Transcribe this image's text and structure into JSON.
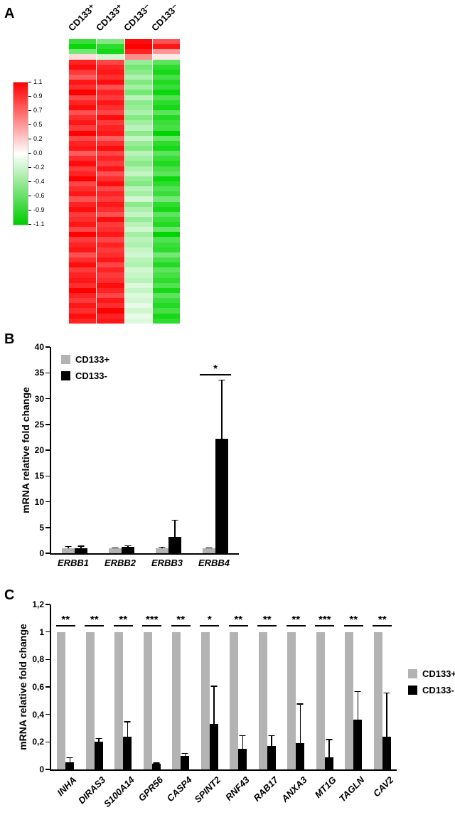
{
  "panels": {
    "a": "A",
    "b": "B",
    "c": "C"
  },
  "panel_a": {
    "column_labels": [
      "CD133⁺",
      "CD133⁺",
      "CD133⁻",
      "CD133⁻"
    ],
    "colorbar_ticks": [
      "1.1",
      "0.9",
      "0.7",
      "0.5",
      "0.2",
      "0.0",
      "-0.2",
      "-0.4",
      "-0.6",
      "-0.9",
      "-1.1"
    ]
  },
  "chart_data": [
    {
      "type": "heatmap",
      "panel": "A",
      "columns": [
        "CD133+",
        "CD133+",
        "CD133-",
        "CD133-"
      ],
      "colorscale": {
        "min": -1.1,
        "max": 1.1,
        "min_color": "#00cc00",
        "mid_color": "#ffffff",
        "max_color": "#ff0000"
      },
      "rows": [
        [
          -0.85,
          -0.55,
          1.05,
          0.75
        ],
        [
          -1.05,
          -0.9,
          1.1,
          1.0
        ],
        [
          -0.6,
          -1.0,
          0.95,
          0.45
        ],
        [
          0.15,
          -0.2,
          0.5,
          0.1
        ],
        [
          0.95,
          0.8,
          -0.45,
          -0.7
        ],
        [
          1.05,
          0.95,
          -0.6,
          -0.9
        ],
        [
          0.85,
          1.0,
          -0.5,
          -1.0
        ],
        [
          0.7,
          0.9,
          -0.35,
          -0.8
        ],
        [
          1.0,
          1.05,
          -0.55,
          -0.95
        ],
        [
          0.9,
          0.75,
          -0.4,
          -0.85
        ],
        [
          1.1,
          0.95,
          -0.6,
          -1.05
        ],
        [
          0.8,
          0.85,
          -0.3,
          -0.75
        ],
        [
          0.95,
          1.0,
          -0.5,
          -0.9
        ],
        [
          1.05,
          0.9,
          -0.45,
          -1.0
        ],
        [
          0.75,
          0.8,
          -0.35,
          -0.7
        ],
        [
          0.9,
          1.05,
          -0.55,
          -0.95
        ],
        [
          1.0,
          0.85,
          -0.4,
          -0.85
        ],
        [
          0.85,
          0.95,
          -0.3,
          -0.8
        ],
        [
          1.1,
          1.0,
          -0.5,
          -1.1
        ],
        [
          0.8,
          0.7,
          -0.25,
          -0.65
        ],
        [
          0.95,
          0.9,
          -0.45,
          -0.9
        ],
        [
          1.0,
          1.05,
          -0.55,
          -1.0
        ],
        [
          0.7,
          0.8,
          -0.3,
          -0.7
        ],
        [
          0.9,
          0.95,
          -0.4,
          -0.85
        ],
        [
          1.05,
          0.85,
          -0.5,
          -0.95
        ],
        [
          0.85,
          1.0,
          -0.35,
          -0.8
        ],
        [
          0.95,
          0.75,
          -0.25,
          -0.7
        ],
        [
          1.1,
          0.9,
          -0.45,
          -1.05
        ],
        [
          0.8,
          1.05,
          -0.55,
          -0.9
        ],
        [
          0.9,
          0.8,
          -0.3,
          -0.75
        ],
        [
          1.0,
          0.95,
          -0.4,
          -0.85
        ],
        [
          0.75,
          0.85,
          -0.2,
          -0.6
        ],
        [
          0.95,
          1.0,
          -0.5,
          -0.9
        ],
        [
          1.05,
          0.9,
          -0.35,
          -1.0
        ],
        [
          0.85,
          0.75,
          -0.25,
          -0.7
        ],
        [
          0.9,
          1.05,
          -0.45,
          -0.85
        ],
        [
          1.0,
          0.85,
          -0.3,
          -0.95
        ],
        [
          0.8,
          0.9,
          -0.2,
          -0.65
        ],
        [
          1.1,
          1.0,
          -0.4,
          -1.1
        ],
        [
          0.85,
          0.8,
          -0.3,
          -0.75
        ],
        [
          0.95,
          0.95,
          -0.35,
          -0.85
        ],
        [
          1.0,
          0.85,
          -0.25,
          -0.9
        ],
        [
          0.75,
          0.9,
          -0.2,
          -0.6
        ],
        [
          0.9,
          1.0,
          -0.3,
          -0.8
        ],
        [
          1.05,
          0.8,
          -0.35,
          -0.95
        ],
        [
          0.85,
          0.95,
          -0.2,
          -0.7
        ],
        [
          0.95,
          0.85,
          -0.25,
          -0.8
        ],
        [
          1.0,
          0.9,
          -0.3,
          -0.9
        ],
        [
          0.9,
          1.05,
          -0.15,
          -0.75
        ],
        [
          1.1,
          0.95,
          -0.25,
          -1.0
        ],
        [
          0.95,
          0.8,
          -0.15,
          -0.7
        ],
        [
          0.85,
          1.0,
          -0.2,
          -0.85
        ],
        [
          1.0,
          0.9,
          -0.1,
          -0.95
        ],
        [
          0.9,
          1.1,
          -0.2,
          -0.8
        ],
        [
          1.05,
          0.95,
          -0.1,
          -1.0
        ],
        [
          0.95,
          1.0,
          -0.15,
          -0.9
        ]
      ]
    },
    {
      "type": "bar",
      "panel": "B",
      "categories": [
        "ERBB1",
        "ERBB2",
        "ERBB3",
        "ERBB4"
      ],
      "series": [
        {
          "name": "CD133+",
          "color": "#b3b3b3",
          "values": [
            1.0,
            1.0,
            1.0,
            1.0
          ],
          "errors": [
            0.4,
            0.15,
            0.3,
            0.15
          ]
        },
        {
          "name": "CD133-",
          "color": "#000000",
          "values": [
            1.0,
            1.3,
            3.2,
            22.2
          ],
          "errors": [
            0.5,
            0.25,
            3.3,
            11.5
          ]
        }
      ],
      "ylabel": "mRNA relative fold change",
      "ylim": [
        0,
        40
      ],
      "ytick_values": [
        0,
        5,
        10,
        15,
        20,
        25,
        30,
        35,
        40
      ],
      "ytick_labels": [
        "0",
        "5",
        "10",
        "15",
        "20",
        "25",
        "30",
        "35",
        "40"
      ],
      "significance": [
        null,
        null,
        null,
        "*"
      ],
      "sig_line_value": 34.5,
      "legend_position": "top-left-inside"
    },
    {
      "type": "bar",
      "panel": "C",
      "categories": [
        "INHA",
        "DIRAS3",
        "S100A14",
        "GPR56",
        "CASP4",
        "SPINT2",
        "RNF43",
        "RAB17",
        "ANXA3",
        "MT1G",
        "TAGLN",
        "CAV2"
      ],
      "series": [
        {
          "name": "CD133+",
          "color": "#b3b3b3",
          "values": [
            1,
            1,
            1,
            1,
            1,
            1,
            1,
            1,
            1,
            1,
            1,
            1
          ],
          "errors": [
            0,
            0,
            0,
            0,
            0,
            0,
            0,
            0,
            0,
            0,
            0,
            0
          ]
        },
        {
          "name": "CD133-",
          "color": "#000000",
          "values": [
            0.05,
            0.2,
            0.24,
            0.04,
            0.1,
            0.33,
            0.15,
            0.17,
            0.19,
            0.09,
            0.36,
            0.24
          ],
          "errors": [
            0.04,
            0.03,
            0.11,
            0.01,
            0.02,
            0.28,
            0.1,
            0.08,
            0.29,
            0.13,
            0.21,
            0.32
          ]
        }
      ],
      "ylabel": "mRNA relative fold change",
      "ylim": [
        0,
        1.2
      ],
      "ytick_values": [
        0,
        0.2,
        0.4,
        0.6,
        0.8,
        1,
        1.2
      ],
      "ytick_labels": [
        "0",
        "0,2",
        "0,4",
        "0,6",
        "0,8",
        "1",
        "1,2"
      ],
      "significance": [
        "**",
        "**",
        "**",
        "***",
        "**",
        "*",
        "**",
        "**",
        "**",
        "***",
        "**",
        "**"
      ],
      "sig_line_value": 1.04,
      "legend_position": "right-outside"
    }
  ]
}
